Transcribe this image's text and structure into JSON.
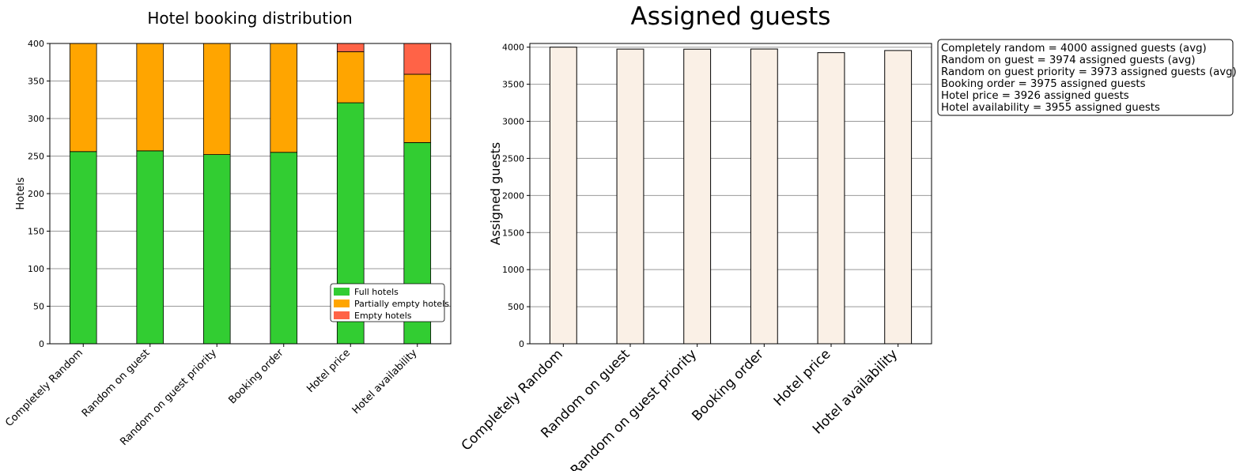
{
  "colors": {
    "full": "#32CD32",
    "partial": "#FFA500",
    "empty": "#FF6347",
    "assigned": "#FAF0E6",
    "grid": "#999999"
  },
  "chart_data": [
    {
      "type": "bar",
      "stacked": true,
      "title": "Hotel booking distribution",
      "xlabel": "",
      "ylabel": "Hotels",
      "categories": [
        "Completely Random",
        "Random on guest",
        "Random on guest priority",
        "Booking order",
        "Hotel price",
        "Hotel availability"
      ],
      "series": [
        {
          "name": "Full hotels",
          "color": "#32CD32",
          "values": [
            256,
            257,
            252,
            255,
            321,
            268
          ]
        },
        {
          "name": "Partially empty hotels",
          "color": "#FFA500",
          "values": [
            144,
            143,
            148,
            145,
            68,
            91
          ]
        },
        {
          "name": "Empty hotels",
          "color": "#FF6347",
          "values": [
            0,
            0,
            0,
            0,
            11,
            41
          ]
        }
      ],
      "ylim": [
        0,
        400
      ],
      "yticks": [
        0,
        50,
        100,
        150,
        200,
        250,
        300,
        350,
        400
      ],
      "grid": "y",
      "legend": "lower-right"
    },
    {
      "type": "bar",
      "title": "Assigned guests",
      "xlabel": "",
      "ylabel": "Assigned guests",
      "categories": [
        "Completely Random",
        "Random on guest",
        "Random on guest priority",
        "Booking order",
        "Hotel price",
        "Hotel availability"
      ],
      "values": [
        4000,
        3974,
        3973,
        3975,
        3926,
        3955
      ],
      "ylim": [
        0,
        4050
      ],
      "yticks": [
        0,
        500,
        1000,
        1500,
        2000,
        2500,
        3000,
        3500,
        4000
      ],
      "grid": "y",
      "annotation": [
        "Completely random = 4000 assigned guests (avg)",
        "Random on guest = 3974 assigned guests (avg)",
        "Random on guest priority = 3973 assigned guests (avg)",
        "Booking order = 3975 assigned guests",
        "Hotel price = 3926 assigned guests",
        "Hotel availability = 3955 assigned guests"
      ]
    }
  ]
}
